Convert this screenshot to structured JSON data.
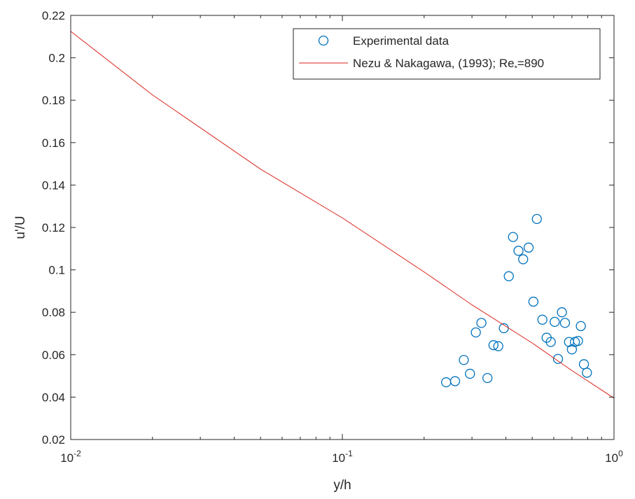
{
  "chart_data": {
    "type": "scatter",
    "xscale": "log",
    "xlabel": "y/h",
    "ylabel": "u'/U",
    "xlim": [
      0.01,
      1
    ],
    "ylim": [
      0.02,
      0.22
    ],
    "grid": false,
    "legend_placement": "top-right",
    "x_ticks": [
      {
        "value": 0.01,
        "base": "10",
        "exp": "-2"
      },
      {
        "value": 0.1,
        "base": "10",
        "exp": "-1"
      },
      {
        "value": 1,
        "base": "10",
        "exp": "0"
      }
    ],
    "y_ticks": [
      "0.02",
      "0.04",
      "0.06",
      "0.08",
      "0.1",
      "0.12",
      "0.14",
      "0.16",
      "0.18",
      "0.2",
      "0.22"
    ],
    "series": [
      {
        "name": "Experimental data",
        "kind": "scatter",
        "color": "#0072BD",
        "points": [
          [
            0.241,
            0.047
          ],
          [
            0.26,
            0.0475
          ],
          [
            0.28,
            0.0575
          ],
          [
            0.295,
            0.051
          ],
          [
            0.31,
            0.0705
          ],
          [
            0.325,
            0.075
          ],
          [
            0.342,
            0.049
          ],
          [
            0.36,
            0.0645
          ],
          [
            0.375,
            0.064
          ],
          [
            0.393,
            0.0725
          ],
          [
            0.41,
            0.097
          ],
          [
            0.425,
            0.1155
          ],
          [
            0.445,
            0.109
          ],
          [
            0.463,
            0.105
          ],
          [
            0.485,
            0.1105
          ],
          [
            0.505,
            0.085
          ],
          [
            0.52,
            0.124
          ],
          [
            0.545,
            0.0765
          ],
          [
            0.565,
            0.068
          ],
          [
            0.585,
            0.066
          ],
          [
            0.605,
            0.0755
          ],
          [
            0.622,
            0.058
          ],
          [
            0.643,
            0.08
          ],
          [
            0.66,
            0.075
          ],
          [
            0.683,
            0.066
          ],
          [
            0.7,
            0.0625
          ],
          [
            0.718,
            0.066
          ],
          [
            0.737,
            0.0665
          ],
          [
            0.755,
            0.0735
          ],
          [
            0.775,
            0.0555
          ],
          [
            0.795,
            0.0515
          ]
        ]
      },
      {
        "name": "Nezu & Nakagawa, (1993); Re",
        "name_subscript": "*",
        "name_suffix": "=890",
        "kind": "line",
        "color": "#D9231B",
        "points": [
          [
            0.01,
            0.2125
          ],
          [
            0.02,
            0.1825
          ],
          [
            0.05,
            0.1475
          ],
          [
            0.1,
            0.1245
          ],
          [
            0.2,
            0.099
          ],
          [
            0.3,
            0.0835
          ],
          [
            0.5,
            0.0655
          ],
          [
            0.7,
            0.0525
          ],
          [
            1.0,
            0.0395
          ]
        ]
      }
    ]
  }
}
